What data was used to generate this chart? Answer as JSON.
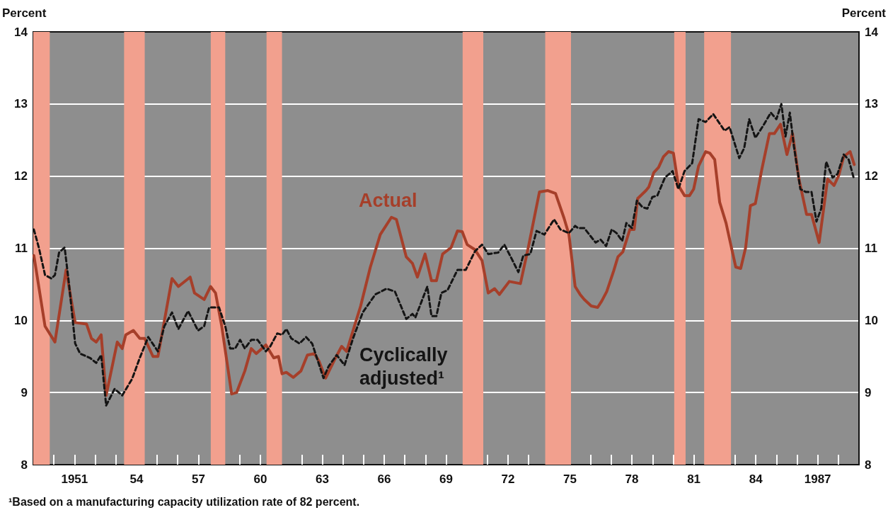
{
  "chart_data": {
    "type": "line",
    "ylabel": "Percent",
    "y2label": "Percent",
    "xlim": [
      1949,
      1989
    ],
    "ylim": [
      8,
      14
    ],
    "y2lim": [
      8,
      14
    ],
    "yticks": [
      8,
      9,
      10,
      11,
      12,
      13,
      14
    ],
    "y2ticks": [
      8,
      9,
      10,
      11,
      12,
      13,
      14
    ],
    "xticks": [
      {
        "value": 1950,
        "label": null
      },
      {
        "value": 1951,
        "label": "1951"
      },
      {
        "value": 1952,
        "label": null
      },
      {
        "value": 1953,
        "label": null
      },
      {
        "value": 1954,
        "label": "54"
      },
      {
        "value": 1955,
        "label": null
      },
      {
        "value": 1956,
        "label": null
      },
      {
        "value": 1957,
        "label": "57"
      },
      {
        "value": 1958,
        "label": null
      },
      {
        "value": 1959,
        "label": null
      },
      {
        "value": 1960,
        "label": "60"
      },
      {
        "value": 1961,
        "label": null
      },
      {
        "value": 1962,
        "label": null
      },
      {
        "value": 1963,
        "label": "63"
      },
      {
        "value": 1964,
        "label": null
      },
      {
        "value": 1965,
        "label": null
      },
      {
        "value": 1966,
        "label": "66"
      },
      {
        "value": 1967,
        "label": null
      },
      {
        "value": 1968,
        "label": null
      },
      {
        "value": 1969,
        "label": "69"
      },
      {
        "value": 1970,
        "label": null
      },
      {
        "value": 1971,
        "label": null
      },
      {
        "value": 1972,
        "label": "72"
      },
      {
        "value": 1973,
        "label": null
      },
      {
        "value": 1974,
        "label": null
      },
      {
        "value": 1975,
        "label": "75"
      },
      {
        "value": 1976,
        "label": null
      },
      {
        "value": 1977,
        "label": null
      },
      {
        "value": 1978,
        "label": "78"
      },
      {
        "value": 1979,
        "label": null
      },
      {
        "value": 1980,
        "label": null
      },
      {
        "value": 1981,
        "label": "81"
      },
      {
        "value": 1982,
        "label": null
      },
      {
        "value": 1983,
        "label": null
      },
      {
        "value": 1984,
        "label": "84"
      },
      {
        "value": 1985,
        "label": null
      },
      {
        "value": 1986,
        "label": null
      },
      {
        "value": 1987,
        "label": "1987"
      },
      {
        "value": 1988,
        "label": null
      }
    ],
    "grid": "y",
    "legend": false,
    "marker": "none",
    "series": [
      {
        "name": "Actual",
        "color": "#a63f2a",
        "line_style": "solid",
        "x": [
          1949.03,
          1949.57,
          1950.05,
          1950.59,
          1951.03,
          1951.58,
          1951.82,
          1952.05,
          1952.29,
          1952.53,
          1953.07,
          1953.31,
          1953.48,
          1953.85,
          1954.16,
          1954.4,
          1954.8,
          1955.04,
          1955.72,
          1956.03,
          1956.6,
          1956.81,
          1957.28,
          1957.59,
          1957.83,
          1958.13,
          1958.61,
          1958.85,
          1959.25,
          1959.56,
          1959.8,
          1960.27,
          1960.65,
          1960.88,
          1961.05,
          1961.26,
          1961.6,
          1961.97,
          1962.28,
          1962.62,
          1962.85,
          1963.16,
          1963.64,
          1963.94,
          1964.18,
          1964.86,
          1965.33,
          1965.81,
          1966.35,
          1966.59,
          1967.07,
          1967.37,
          1967.61,
          1967.98,
          1968.29,
          1968.53,
          1968.83,
          1969.24,
          1969.55,
          1969.78,
          1970.02,
          1970.4,
          1970.74,
          1971.04,
          1971.35,
          1971.58,
          1972.06,
          1972.6,
          1972.98,
          1973.52,
          1973.93,
          1974.3,
          1974.71,
          1974.95,
          1975.25,
          1975.49,
          1975.69,
          1976.03,
          1976.34,
          1976.54,
          1976.78,
          1977.12,
          1977.32,
          1977.56,
          1977.9,
          1978.11,
          1978.28,
          1978.68,
          1978.82,
          1979.06,
          1979.29,
          1979.53,
          1979.77,
          1980.01,
          1980.25,
          1980.55,
          1980.79,
          1980.99,
          1981.23,
          1981.57,
          1981.77,
          1982.01,
          1982.25,
          1982.56,
          1982.79,
          1983.03,
          1983.27,
          1983.51,
          1983.74,
          1983.98,
          1984.29,
          1984.66,
          1984.9,
          1985.2,
          1985.51,
          1985.78,
          1986.09,
          1986.46,
          1986.7,
          1987.07,
          1987.48,
          1987.79,
          1988.02,
          1988.26,
          1988.57,
          1988.77
        ],
        "values": [
          10.9,
          9.92,
          9.7,
          10.7,
          9.97,
          9.95,
          9.75,
          9.7,
          9.8,
          8.96,
          9.7,
          9.61,
          9.8,
          9.86,
          9.75,
          9.75,
          9.5,
          9.5,
          10.58,
          10.47,
          10.6,
          10.38,
          10.29,
          10.47,
          10.38,
          9.92,
          8.98,
          9.0,
          9.3,
          9.61,
          9.54,
          9.66,
          9.48,
          9.5,
          9.26,
          9.28,
          9.21,
          9.3,
          9.52,
          9.54,
          9.43,
          9.2,
          9.48,
          9.64,
          9.57,
          10.2,
          10.74,
          11.19,
          11.43,
          11.4,
          10.88,
          10.79,
          10.6,
          10.92,
          10.55,
          10.55,
          10.92,
          11.01,
          11.24,
          11.23,
          11.05,
          10.98,
          10.83,
          10.38,
          10.44,
          10.36,
          10.54,
          10.51,
          11.01,
          11.78,
          11.8,
          11.76,
          11.42,
          11.19,
          10.47,
          10.36,
          10.29,
          10.2,
          10.18,
          10.27,
          10.4,
          10.69,
          10.88,
          10.95,
          11.26,
          11.26,
          11.69,
          11.8,
          11.85,
          12.05,
          12.12,
          12.27,
          12.34,
          12.32,
          11.87,
          11.73,
          11.73,
          11.82,
          12.14,
          12.34,
          12.32,
          12.23,
          11.64,
          11.35,
          11.05,
          10.74,
          10.72,
          11.01,
          11.59,
          11.62,
          12.09,
          12.59,
          12.59,
          12.72,
          12.3,
          12.59,
          11.96,
          11.47,
          11.47,
          11.08,
          11.96,
          11.87,
          12.01,
          12.27,
          12.34,
          12.16
        ]
      },
      {
        "name": "Cyclically adjusted¹",
        "color": "#141414",
        "line_style": "dashed",
        "x": [
          1949.03,
          1949.27,
          1949.57,
          1949.88,
          1950.05,
          1950.25,
          1950.52,
          1950.73,
          1951.03,
          1951.27,
          1951.75,
          1952.05,
          1952.29,
          1952.53,
          1952.94,
          1953.31,
          1953.79,
          1954.16,
          1954.57,
          1955.04,
          1955.35,
          1955.72,
          1956.03,
          1956.5,
          1956.98,
          1957.28,
          1957.52,
          1958.0,
          1958.3,
          1958.54,
          1958.78,
          1959.02,
          1959.25,
          1959.56,
          1959.87,
          1960.27,
          1960.48,
          1960.82,
          1961.05,
          1961.26,
          1961.5,
          1961.9,
          1962.21,
          1962.51,
          1963.06,
          1963.3,
          1963.7,
          1964.08,
          1964.49,
          1964.96,
          1965.57,
          1966.12,
          1966.52,
          1967.07,
          1967.37,
          1967.51,
          1968.09,
          1968.29,
          1968.53,
          1968.77,
          1969.07,
          1969.55,
          1969.95,
          1970.4,
          1970.74,
          1971.04,
          1971.52,
          1971.82,
          1972.13,
          1972.5,
          1972.74,
          1973.08,
          1973.38,
          1973.76,
          1974.23,
          1974.54,
          1974.95,
          1975.25,
          1975.39,
          1975.69,
          1976.24,
          1976.48,
          1976.75,
          1977.02,
          1977.26,
          1977.53,
          1977.73,
          1978.0,
          1978.24,
          1978.51,
          1978.75,
          1978.99,
          1979.23,
          1979.6,
          1979.97,
          1980.25,
          1980.55,
          1980.92,
          1981.23,
          1981.57,
          1981.94,
          1982.49,
          1982.73,
          1983.2,
          1983.44,
          1983.68,
          1983.98,
          1984.36,
          1984.73,
          1985.0,
          1985.24,
          1985.44,
          1985.65,
          1985.85,
          1986.16,
          1986.43,
          1986.7,
          1986.94,
          1987.17,
          1987.41,
          1987.72,
          1987.96,
          1988.26,
          1988.5,
          1988.74
        ],
        "values": [
          11.26,
          11.01,
          10.63,
          10.58,
          10.63,
          10.94,
          11.01,
          10.51,
          9.68,
          9.54,
          9.48,
          9.41,
          9.52,
          8.82,
          9.05,
          8.96,
          9.19,
          9.48,
          9.77,
          9.57,
          9.92,
          10.11,
          9.88,
          10.13,
          9.86,
          9.92,
          10.18,
          10.18,
          9.92,
          9.61,
          9.61,
          9.73,
          9.61,
          9.73,
          9.73,
          9.57,
          9.64,
          9.82,
          9.8,
          9.88,
          9.75,
          9.68,
          9.77,
          9.68,
          9.2,
          9.36,
          9.52,
          9.38,
          9.75,
          10.11,
          10.36,
          10.44,
          10.4,
          10.02,
          10.09,
          10.04,
          10.47,
          10.06,
          10.06,
          10.38,
          10.42,
          10.7,
          10.7,
          10.96,
          11.05,
          10.92,
          10.94,
          11.05,
          10.88,
          10.67,
          10.9,
          10.92,
          11.24,
          11.19,
          11.4,
          11.26,
          11.21,
          11.31,
          11.28,
          11.28,
          11.08,
          11.12,
          11.03,
          11.26,
          11.21,
          11.1,
          11.35,
          11.28,
          11.66,
          11.57,
          11.55,
          11.71,
          11.73,
          11.98,
          12.07,
          11.82,
          12.07,
          12.18,
          12.79,
          12.75,
          12.86,
          12.63,
          12.68,
          12.25,
          12.39,
          12.79,
          12.53,
          12.7,
          12.88,
          12.79,
          13.0,
          12.55,
          12.88,
          12.41,
          11.82,
          11.78,
          11.78,
          11.37,
          11.55,
          12.2,
          11.98,
          12.03,
          12.3,
          12.23,
          11.98
        ]
      }
    ],
    "bands": [
      {
        "axis": "x",
        "from": 1949.0,
        "to": 1949.8,
        "color": "#f2a08e"
      },
      {
        "axis": "x",
        "from": 1953.4,
        "to": 1954.4,
        "color": "#f2a08e"
      },
      {
        "axis": "x",
        "from": 1957.6,
        "to": 1958.3,
        "color": "#f2a08e"
      },
      {
        "axis": "x",
        "from": 1960.3,
        "to": 1961.05,
        "color": "#f2a08e"
      },
      {
        "axis": "x",
        "from": 1969.8,
        "to": 1970.8,
        "color": "#f2a08e"
      },
      {
        "axis": "x",
        "from": 1973.8,
        "to": 1975.05,
        "color": "#f2a08e"
      },
      {
        "axis": "x",
        "from": 1980.05,
        "to": 1980.6,
        "color": "#f2a08e"
      },
      {
        "axis": "x",
        "from": 1981.5,
        "to": 1982.8,
        "color": "#f2a08e"
      }
    ],
    "annotations": [
      "¹Based on a manufacturing capacity utilization rate of 82 percent."
    ]
  }
}
